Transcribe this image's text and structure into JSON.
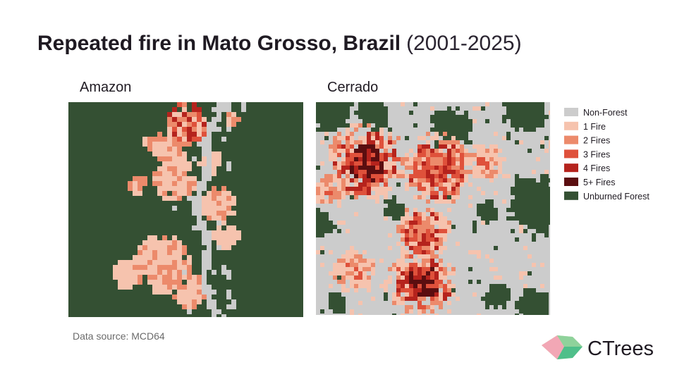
{
  "header": {
    "title_bold": "Repeated fire in Mato Grosso, Brazil",
    "title_years": "(2001-2025)"
  },
  "panels": [
    {
      "label": "Amazon"
    },
    {
      "label": "Cerrado"
    }
  ],
  "legend": {
    "items": [
      {
        "label": "Non-Forest",
        "color": "#cccccc"
      },
      {
        "label": "1 Fire",
        "color": "#f6c3ae"
      },
      {
        "label": "2 Fires",
        "color": "#ec8a6b"
      },
      {
        "label": "3 Fires",
        "color": "#df513b"
      },
      {
        "label": "4 Fires",
        "color": "#b5231d"
      },
      {
        "label": "5+ Fires",
        "color": "#5b0e10"
      },
      {
        "label": "Unburned Forest",
        "color": "#345033"
      }
    ]
  },
  "source": "Data source: MCD64",
  "logo": {
    "text": "CTrees"
  }
}
